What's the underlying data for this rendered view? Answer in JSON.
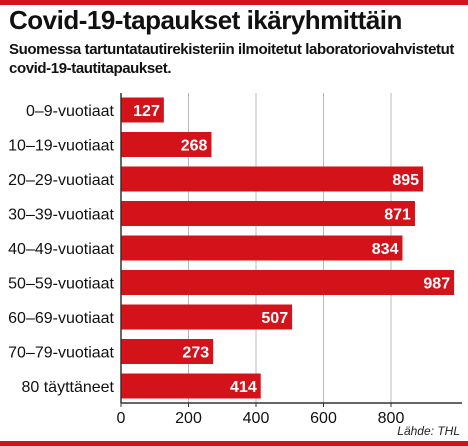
{
  "colors": {
    "bar": "#d4121a",
    "rule": "#d4121a",
    "grid": "#b8b8b8",
    "axis": "#333333"
  },
  "header": {
    "title": "Covid-19-tapaukset ikäryhmittäin",
    "subtitle": "Suomessa tartuntatautirekisteriin ilmoitetut laboratoriovahvistetut covid-19-tautitapaukset."
  },
  "footer": {
    "source": "Lähde: THL"
  },
  "chart_data": {
    "type": "bar",
    "orientation": "horizontal",
    "title": "Covid-19-tapaukset ikäryhmittäin",
    "subtitle": "Suomessa tartuntatautirekisteriin ilmoitetut laboratoriovahvistetut covid-19-tautitapaukset.",
    "xlabel": "",
    "ylabel": "",
    "categories": [
      "0–9-vuotiaat",
      "10–19-vuotiaat",
      "20–29-vuotiaat",
      "30–39-vuotiaat",
      "40–49-vuotiaat",
      "50–59-vuotiaat",
      "60–69-vuotiaat",
      "70–79-vuotiaat",
      "80 täyttäneet"
    ],
    "values": [
      127,
      268,
      895,
      871,
      834,
      987,
      507,
      273,
      414
    ],
    "xlim": [
      0,
      1000
    ],
    "xticks": [
      0,
      200,
      400,
      600,
      800
    ],
    "grid": true,
    "legend": "none"
  }
}
